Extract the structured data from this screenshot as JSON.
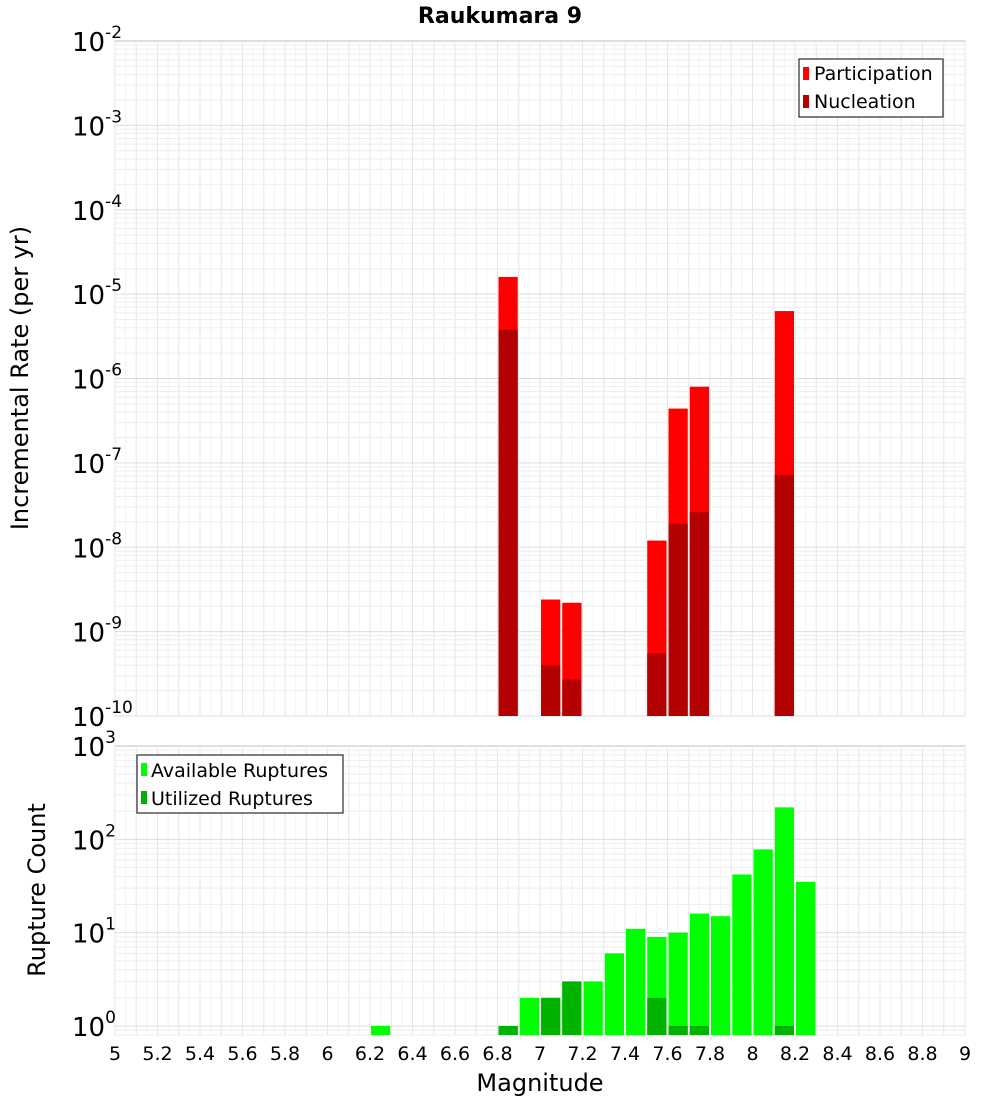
{
  "chart_data": [
    {
      "type": "bar",
      "title": "Raukumara 9",
      "ylabel": "Incremental Rate (per yr)",
      "xlabel": "",
      "xlim": [
        5,
        9
      ],
      "ylim": [
        1e-10,
        0.01
      ],
      "yscale": "log",
      "grid": true,
      "legend_position": "top-right",
      "bin_width": 0.1,
      "series": [
        {
          "name": "Participation",
          "color": "#ff0000",
          "x": [
            6.85,
            7.05,
            7.15,
            7.55,
            7.65,
            7.75,
            8.15
          ],
          "values": [
            1.6e-05,
            2.4e-09,
            2.2e-09,
            1.2e-08,
            4.4e-07,
            8e-07,
            6.3e-06
          ]
        },
        {
          "name": "Nucleation",
          "color": "#b30000",
          "x": [
            6.85,
            7.05,
            7.15,
            7.55,
            7.65,
            7.75,
            8.15
          ],
          "values": [
            3.8e-06,
            4e-10,
            2.7e-10,
            5.5e-10,
            1.9e-08,
            2.6e-08,
            7.2e-08
          ]
        }
      ]
    },
    {
      "type": "bar",
      "title": "",
      "ylabel": "Rupture Count",
      "xlabel": "Magnitude",
      "xlim": [
        5,
        9
      ],
      "ylim": [
        0.8,
        1000
      ],
      "yscale": "log",
      "grid": true,
      "legend_position": "top-left",
      "bin_width": 0.1,
      "series": [
        {
          "name": "Available Ruptures",
          "color": "#00ff00",
          "x": [
            6.25,
            6.85,
            6.95,
            7.05,
            7.15,
            7.25,
            7.35,
            7.45,
            7.55,
            7.65,
            7.75,
            7.85,
            7.95,
            8.05,
            8.15,
            8.25
          ],
          "values": [
            1,
            1,
            2,
            2,
            3,
            3,
            6,
            11,
            9,
            10,
            16,
            15,
            42,
            78,
            220,
            35
          ]
        },
        {
          "name": "Utilized Ruptures",
          "color": "#00b300",
          "x": [
            6.85,
            7.05,
            7.15,
            7.55,
            7.65,
            7.75,
            8.15
          ],
          "values": [
            1,
            2,
            3,
            2,
            1,
            1,
            1
          ]
        }
      ]
    }
  ],
  "x_ticks": [
    "5",
    "5.2",
    "5.4",
    "5.6",
    "5.8",
    "6",
    "6.2",
    "6.4",
    "6.6",
    "6.8",
    "7",
    "7.2",
    "7.4",
    "7.6",
    "7.8",
    "8",
    "8.2",
    "8.4",
    "8.6",
    "8.8",
    "9"
  ]
}
